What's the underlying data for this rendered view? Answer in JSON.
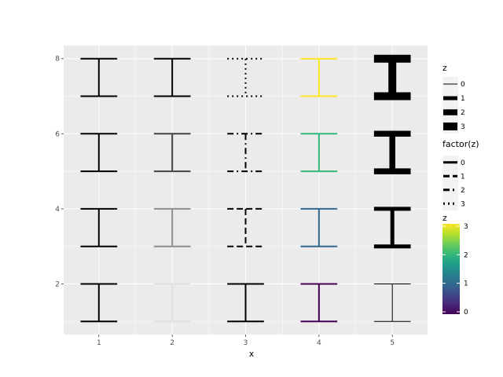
{
  "chart_data": {
    "type": "errorbar",
    "xlabel": "x",
    "x_ticks": [
      1,
      2,
      3,
      4,
      5
    ],
    "y_ticks": [
      2,
      4,
      6,
      8
    ],
    "xlim": [
      0.52,
      5.48
    ],
    "ylim": [
      0.65,
      8.35
    ],
    "background": "#ebebeb",
    "grid": "on",
    "bar_width": 0.5,
    "panels": [
      {
        "x": 1,
        "encoding": "none",
        "bars": [
          {
            "ymin": 1,
            "ymax": 2,
            "color": "#000000",
            "width": 2,
            "dash": "solid"
          },
          {
            "ymin": 3,
            "ymax": 4,
            "color": "#000000",
            "width": 2,
            "dash": "solid"
          },
          {
            "ymin": 5,
            "ymax": 6,
            "color": "#000000",
            "width": 2,
            "dash": "solid"
          },
          {
            "ymin": 7,
            "ymax": 8,
            "color": "#000000",
            "width": 2,
            "dash": "solid"
          }
        ]
      },
      {
        "x": 2,
        "encoding": "alpha",
        "bars": [
          {
            "ymin": 1,
            "ymax": 2,
            "color": "#e0e0e0",
            "width": 2,
            "dash": "solid"
          },
          {
            "ymin": 3,
            "ymax": 4,
            "color": "#8f8f8f",
            "width": 2,
            "dash": "solid"
          },
          {
            "ymin": 5,
            "ymax": 6,
            "color": "#444444",
            "width": 2,
            "dash": "solid"
          },
          {
            "ymin": 7,
            "ymax": 8,
            "color": "#000000",
            "width": 2,
            "dash": "solid"
          }
        ]
      },
      {
        "x": 3,
        "encoding": "linetype",
        "bars": [
          {
            "ymin": 1,
            "ymax": 2,
            "color": "#000000",
            "width": 2,
            "dash": "solid"
          },
          {
            "ymin": 3,
            "ymax": 4,
            "color": "#000000",
            "width": 2,
            "dash": "dashed"
          },
          {
            "ymin": 5,
            "ymax": 6,
            "color": "#000000",
            "width": 2,
            "dash": "dashdot"
          },
          {
            "ymin": 7,
            "ymax": 8,
            "color": "#000000",
            "width": 2,
            "dash": "dotted"
          }
        ]
      },
      {
        "x": 4,
        "encoding": "color",
        "bars": [
          {
            "ymin": 1,
            "ymax": 2,
            "color": "#440154",
            "width": 2,
            "dash": "solid"
          },
          {
            "ymin": 3,
            "ymax": 4,
            "color": "#31688e",
            "width": 2,
            "dash": "solid"
          },
          {
            "ymin": 5,
            "ymax": 6,
            "color": "#35b779",
            "width": 2,
            "dash": "solid"
          },
          {
            "ymin": 7,
            "ymax": 8,
            "color": "#fde725",
            "width": 2,
            "dash": "solid"
          }
        ]
      },
      {
        "x": 5,
        "encoding": "size",
        "bars": [
          {
            "ymin": 1,
            "ymax": 2,
            "color": "#000000",
            "width": 1,
            "dash": "solid"
          },
          {
            "ymin": 3,
            "ymax": 4,
            "color": "#000000",
            "width": 5,
            "dash": "solid"
          },
          {
            "ymin": 5,
            "ymax": 6,
            "color": "#000000",
            "width": 7.5,
            "dash": "solid"
          },
          {
            "ymin": 7,
            "ymax": 8,
            "color": "#000000",
            "width": 10,
            "dash": "solid"
          }
        ]
      }
    ],
    "legends": [
      {
        "title": "z",
        "kind": "size",
        "entries": [
          {
            "label": "0",
            "width": 1
          },
          {
            "label": "1",
            "width": 5
          },
          {
            "label": "2",
            "width": 7.5
          },
          {
            "label": "3",
            "width": 10
          }
        ]
      },
      {
        "title": "factor(z)",
        "kind": "linetype",
        "entries": [
          {
            "label": "0",
            "dash": "solid"
          },
          {
            "label": "1",
            "dash": "dashed"
          },
          {
            "label": "2",
            "dash": "dashdot"
          },
          {
            "label": "3",
            "dash": "dotted"
          }
        ]
      },
      {
        "title": "z",
        "kind": "colorbar",
        "range": [
          0,
          3
        ],
        "ticks": [
          "0",
          "1",
          "2",
          "3"
        ],
        "colors": [
          "#440154",
          "#482878",
          "#3e4989",
          "#31688e",
          "#26828e",
          "#1f9e89",
          "#35b779",
          "#6ece58",
          "#b5de2b",
          "#fde725"
        ]
      }
    ]
  }
}
